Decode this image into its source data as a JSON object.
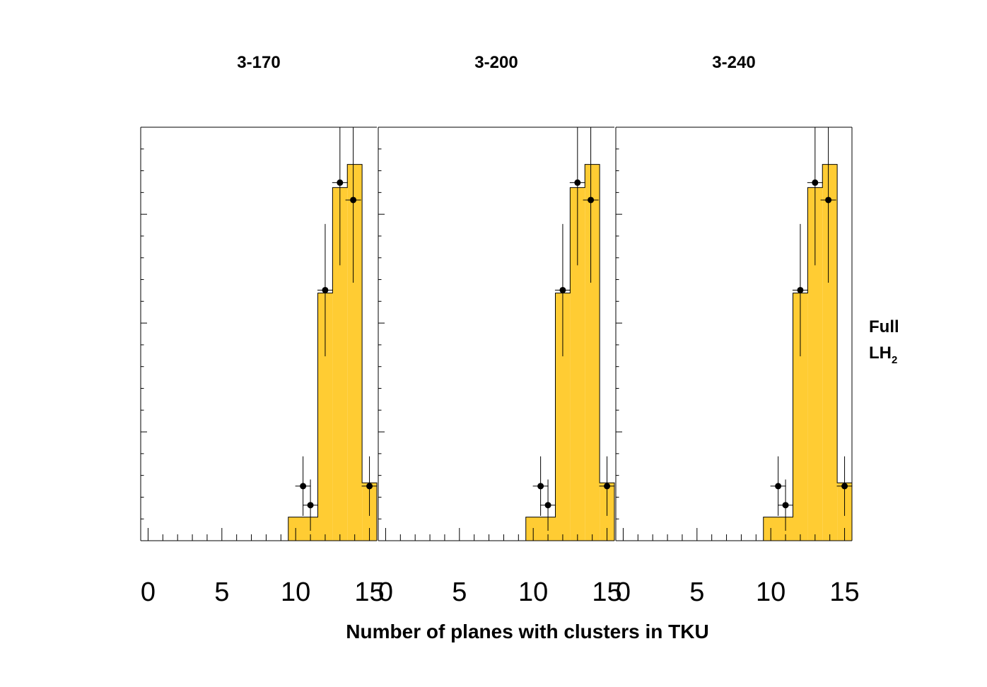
{
  "chart_data": {
    "type": "bar",
    "xlabel": "Number of planes with clusters in TKU",
    "side_label": {
      "line1": "Full",
      "line2_main": "LH",
      "line2_sub": "2"
    },
    "xlim": [
      -0.5,
      15.5
    ],
    "ylim": [
      0,
      1
    ],
    "x_ticks": [
      0,
      5,
      10,
      15
    ],
    "colors": {
      "histogram_fill": "#ffcc33",
      "line": "#000000",
      "marker": "#000000"
    },
    "panels": [
      {
        "title": "3-170",
        "histogram": [
          {
            "x0": 9.5,
            "x1": 11.5,
            "y": 0.057
          },
          {
            "x0": 11.5,
            "x1": 12.5,
            "y": 0.599
          },
          {
            "x0": 12.5,
            "x1": 13.5,
            "y": 0.854
          },
          {
            "x0": 13.5,
            "x1": 14.5,
            "y": 0.91
          },
          {
            "x0": 14.5,
            "x1": 15.5,
            "y": 0.14
          }
        ],
        "points": [
          {
            "x": 10.5,
            "y": 0.132,
            "yerr": 0.072
          },
          {
            "x": 11.0,
            "y": 0.086,
            "yerr": 0.062
          },
          {
            "x": 12.0,
            "y": 0.606,
            "yerr": 0.16
          },
          {
            "x": 13.0,
            "y": 0.866,
            "yerr": 0.2
          },
          {
            "x": 13.9,
            "y": 0.824,
            "yerr": 0.2
          },
          {
            "x": 15.0,
            "y": 0.132,
            "yerr": 0.072
          }
        ]
      },
      {
        "title": "3-200",
        "histogram": [
          {
            "x0": 9.5,
            "x1": 11.5,
            "y": 0.057
          },
          {
            "x0": 11.5,
            "x1": 12.5,
            "y": 0.599
          },
          {
            "x0": 12.5,
            "x1": 13.5,
            "y": 0.854
          },
          {
            "x0": 13.5,
            "x1": 14.5,
            "y": 0.91
          },
          {
            "x0": 14.5,
            "x1": 15.5,
            "y": 0.14
          }
        ],
        "points": [
          {
            "x": 10.5,
            "y": 0.132,
            "yerr": 0.072
          },
          {
            "x": 11.0,
            "y": 0.086,
            "yerr": 0.062
          },
          {
            "x": 12.0,
            "y": 0.606,
            "yerr": 0.16
          },
          {
            "x": 13.0,
            "y": 0.866,
            "yerr": 0.2
          },
          {
            "x": 13.9,
            "y": 0.824,
            "yerr": 0.2
          },
          {
            "x": 15.0,
            "y": 0.132,
            "yerr": 0.072
          }
        ]
      },
      {
        "title": "3-240",
        "histogram": [
          {
            "x0": 9.5,
            "x1": 11.5,
            "y": 0.057
          },
          {
            "x0": 11.5,
            "x1": 12.5,
            "y": 0.599
          },
          {
            "x0": 12.5,
            "x1": 13.5,
            "y": 0.854
          },
          {
            "x0": 13.5,
            "x1": 14.5,
            "y": 0.91
          },
          {
            "x0": 14.5,
            "x1": 15.5,
            "y": 0.14
          }
        ],
        "points": [
          {
            "x": 10.5,
            "y": 0.132,
            "yerr": 0.072
          },
          {
            "x": 11.0,
            "y": 0.086,
            "yerr": 0.062
          },
          {
            "x": 12.0,
            "y": 0.606,
            "yerr": 0.16
          },
          {
            "x": 13.0,
            "y": 0.866,
            "yerr": 0.2
          },
          {
            "x": 13.9,
            "y": 0.824,
            "yerr": 0.2
          },
          {
            "x": 15.0,
            "y": 0.132,
            "yerr": 0.072
          }
        ]
      }
    ]
  }
}
